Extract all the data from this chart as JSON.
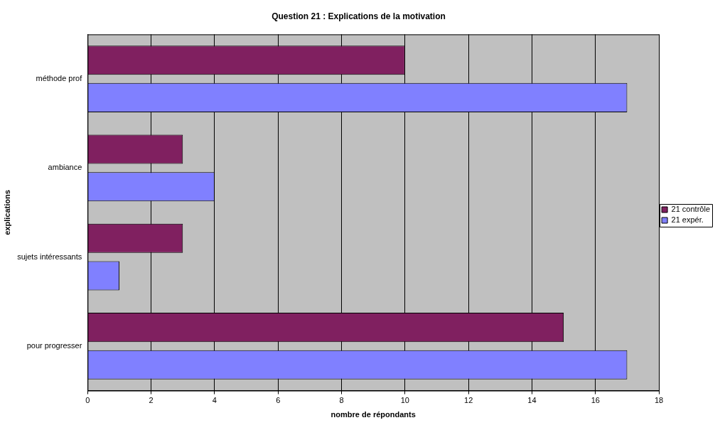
{
  "chart_data": {
    "type": "bar",
    "orientation": "horizontal",
    "title": "Question 21 : Explications de la motivation",
    "xlabel": "nombre de répondants",
    "ylabel": "explications",
    "categories": [
      "méthode prof",
      "ambiance",
      "sujets intéressants",
      "pour progresser"
    ],
    "series": [
      {
        "name": "21 contrôle",
        "color": "#802060",
        "values": [
          10,
          3,
          3,
          15
        ]
      },
      {
        "name": "21 expér.",
        "color": "#8080ff",
        "values": [
          17,
          4,
          1,
          17
        ]
      }
    ],
    "xlim": [
      0,
      18
    ],
    "xticks": [
      0,
      2,
      4,
      6,
      8,
      10,
      12,
      14,
      16,
      18
    ],
    "grid": "x",
    "legend": "right"
  }
}
